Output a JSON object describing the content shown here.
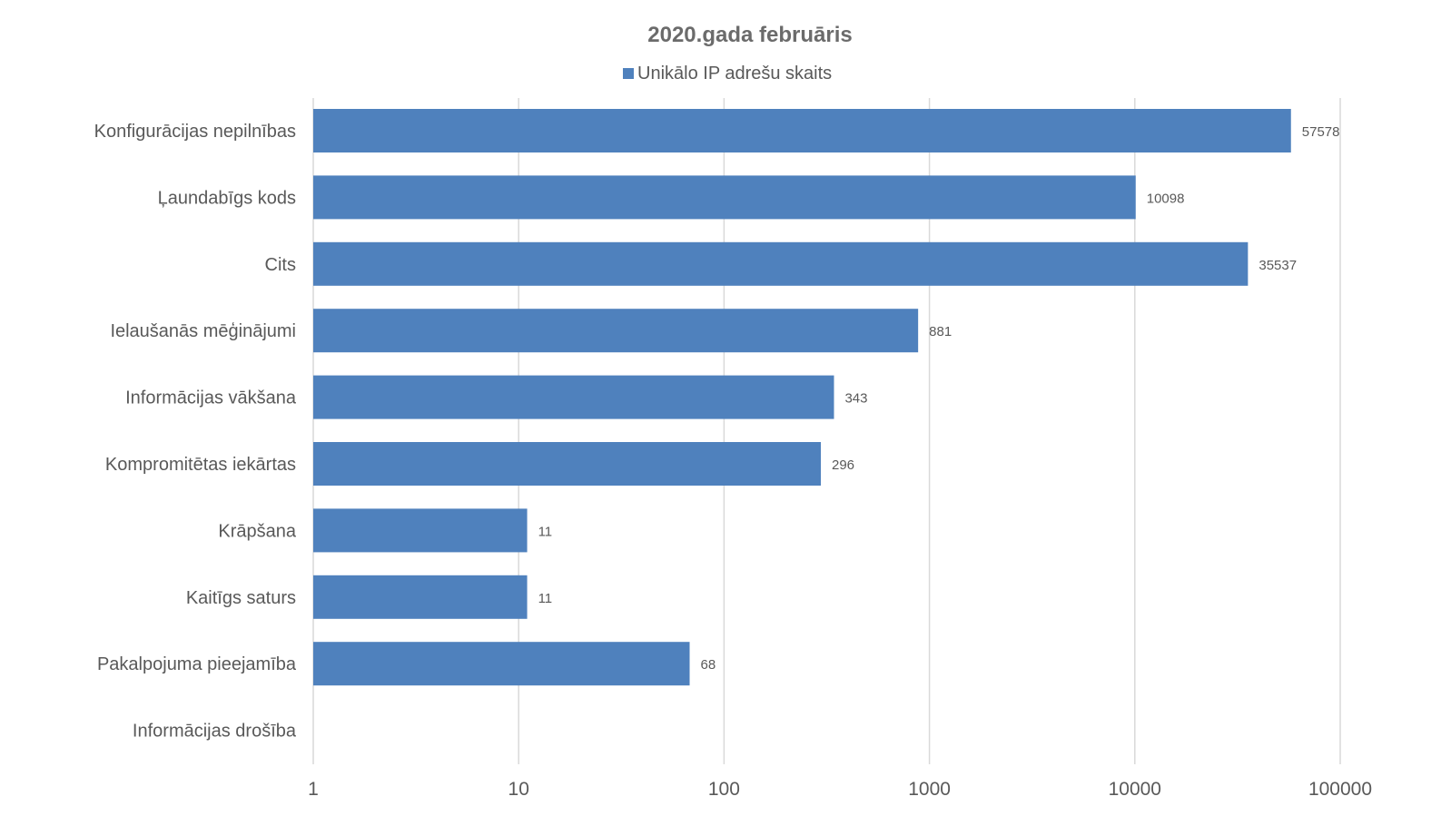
{
  "chart_data": {
    "type": "bar",
    "orientation": "horizontal",
    "title": "2020.gada februāris",
    "x_scale": "log",
    "xlim": [
      1,
      100000
    ],
    "x_ticks": [
      1,
      10,
      100,
      1000,
      10000,
      100000
    ],
    "x_tick_labels": [
      "1",
      "10",
      "100",
      "1000",
      "10000",
      "100000"
    ],
    "grid": "vertical",
    "legend_position": "top",
    "categories": [
      "Konfigurācijas nepilnības",
      "Ļaundabīgs kods",
      "Cits",
      "Ielaušanās mēģinājumi",
      "Informācijas vākšana",
      "Kompromitētas iekārtas",
      "Krāpšana",
      "Kaitīgs saturs",
      "Pakalpojuma pieejamība",
      "Informācijas drošība"
    ],
    "series": [
      {
        "name": "Unikālo IP adrešu skaits",
        "color": "#4f81bd",
        "values": [
          57578,
          10098,
          35537,
          881,
          343,
          296,
          11,
          11,
          68,
          null
        ],
        "labels": [
          "57578",
          "10098",
          "35537",
          "881",
          "343",
          "296",
          "11",
          "11",
          "68",
          ""
        ]
      }
    ]
  }
}
